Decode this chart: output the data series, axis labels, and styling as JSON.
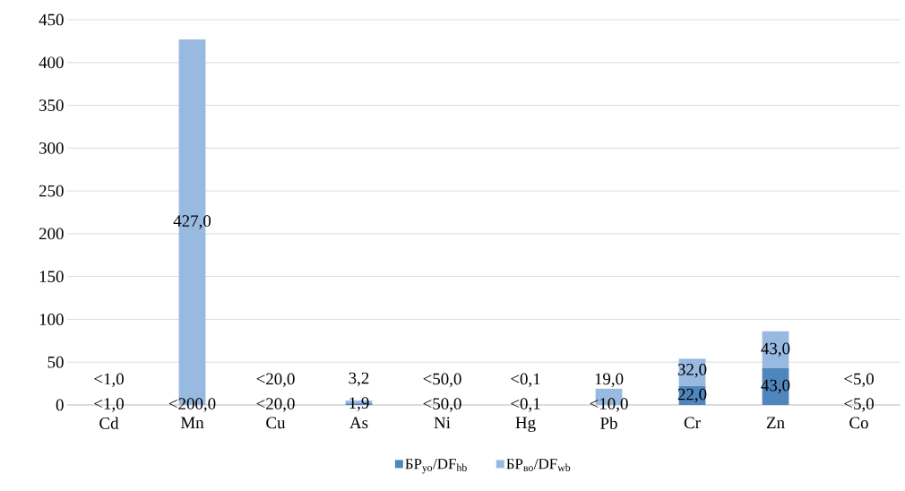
{
  "chart_data": {
    "type": "bar",
    "stacked": true,
    "categories": [
      "Cd",
      "Mn",
      "Cu",
      "As",
      "Ni",
      "Hg",
      "Pb",
      "Cr",
      "Zn",
      "Co"
    ],
    "series": [
      {
        "name": "БР$_{уо}$/DF$_{hb}$",
        "color": "#4f86bb",
        "values": [
          null,
          null,
          null,
          1.9,
          null,
          null,
          null,
          22.0,
          43.0,
          null
        ],
        "value_labels": [
          "<1,0",
          "<200,0",
          "<20,0",
          "1,9",
          "<50,0",
          "<0,1",
          "<10,0",
          "22,0",
          "43,0",
          "<5,0"
        ]
      },
      {
        "name": "БР$_{во}$/DF$_{wb}$",
        "color": "#98b9e0",
        "values": [
          null,
          427.0,
          null,
          3.2,
          null,
          null,
          19.0,
          32.0,
          43.0,
          null
        ],
        "value_labels": [
          "<1,0",
          "427,0",
          "<20,0",
          "3,2",
          "<50,0",
          "<0,1",
          "19,0",
          "32,0",
          "43,0",
          "<5,0"
        ]
      }
    ],
    "ylim": [
      0,
      450
    ],
    "yticks": [
      0,
      50,
      100,
      150,
      200,
      250,
      300,
      350,
      400,
      450
    ],
    "grid": "y",
    "legend": "bottom"
  }
}
